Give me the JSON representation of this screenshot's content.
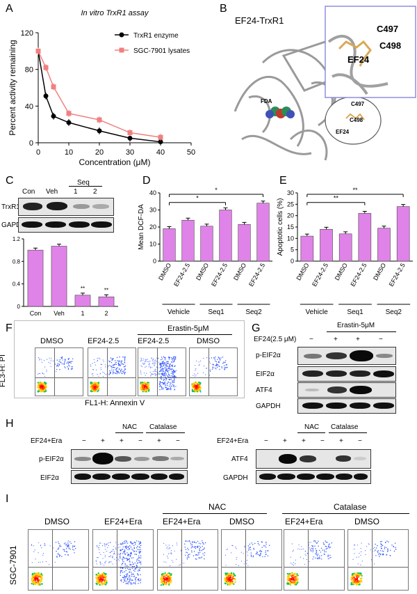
{
  "panels": {
    "A": "A",
    "B": "B",
    "C": "C",
    "D": "D",
    "E": "E",
    "F": "F",
    "G": "G",
    "H": "H",
    "I": "I"
  },
  "chart_data": [
    {
      "id": "A",
      "type": "line",
      "title": "In vitro TrxR1 assay",
      "xlabel": "Concentration (μM)",
      "ylabel": "Percent activity remaining",
      "xlim": [
        0,
        50
      ],
      "ylim": [
        0,
        120
      ],
      "xticks": [
        "0",
        "10",
        "20",
        "30",
        "40",
        "50"
      ],
      "yticks": [
        "0",
        "40",
        "80",
        "120"
      ],
      "legend": "top-right",
      "series": [
        {
          "name": "TrxR1 enzyme",
          "color": "#000000",
          "x": [
            0,
            2.5,
            5,
            10,
            20,
            30,
            40
          ],
          "y": [
            100,
            51,
            29,
            22,
            13,
            5,
            1
          ]
        },
        {
          "name": "SGC-7901 lysates",
          "color": "#f08080",
          "x": [
            0,
            2.5,
            5,
            10,
            20,
            30,
            40
          ],
          "y": [
            100,
            82,
            61,
            32,
            25,
            11,
            6
          ]
        }
      ]
    },
    {
      "id": "C",
      "type": "bar",
      "categories": [
        "Con",
        "Veh",
        "1",
        "2"
      ],
      "values": [
        1.0,
        1.07,
        0.2,
        0.17
      ],
      "ylim": [
        0,
        1.2
      ],
      "yticks": [
        "0",
        "0.4",
        "0.8",
        "1.2"
      ],
      "sig": [
        "",
        "",
        "**",
        "**"
      ],
      "color": "#e083e8"
    },
    {
      "id": "D",
      "type": "bar",
      "ylabel": "Mean DCF-DA",
      "categories": [
        "DMSO",
        "EF24-2.5",
        "DMSO",
        "EF24-2.5",
        "DMSO",
        "EF24-2.5"
      ],
      "groups": [
        "Vehicle",
        "Seq1",
        "Seq2"
      ],
      "values": [
        19,
        24,
        20.5,
        30,
        21.5,
        34
      ],
      "ylim": [
        0,
        40
      ],
      "yticks": [
        "0",
        "10",
        "20",
        "30",
        "40"
      ],
      "sig": [
        "*",
        "*"
      ],
      "color": "#e083e8"
    },
    {
      "id": "E",
      "type": "bar",
      "ylabel": "Apoptotic cells (%)",
      "categories": [
        "DMSO",
        "EF24-2.5",
        "DMSO",
        "EF24-2.5",
        "DMSO",
        "EF24-2.5"
      ],
      "groups": [
        "Vehicle",
        "Seq1",
        "Seq2"
      ],
      "values": [
        11,
        14,
        12,
        21,
        14.5,
        24
      ],
      "ylim": [
        0,
        30
      ],
      "yticks": [
        "0",
        "5",
        "10",
        "15",
        "20",
        "25",
        "30"
      ],
      "sig": [
        "**",
        "**"
      ],
      "color": "#e083e8"
    }
  ],
  "panelB": {
    "title": "EF24-TrxR1",
    "ligand": "FDA",
    "residues": [
      "C497",
      "C498"
    ],
    "compound": "EF24",
    "small_residues": [
      "C497",
      "C498"
    ],
    "small_compound": "EF24"
  },
  "panelC": {
    "lanes": [
      "Con",
      "Veh",
      "1",
      "2"
    ],
    "seq": "Seq",
    "rows": [
      "TrxR1",
      "GAPDH"
    ]
  },
  "panelF": {
    "header": "Erastin-5μM",
    "cols": [
      "DMSO",
      "EF24-2.5",
      "EF24-2.5",
      "DMSO"
    ],
    "ylabel": "FL3-H: PI",
    "xlabel": "FL1-H: Annexin V"
  },
  "panelG": {
    "header": "Erastin-5μM",
    "treat": "EF24(2.5 μM)",
    "signs": [
      "−",
      "+",
      "+",
      "−"
    ],
    "rows": [
      "p-EIF2α",
      "EIF2α",
      "ATF4",
      "GAPDH"
    ]
  },
  "panelH": {
    "left": {
      "rowlabel": "EF24+Era",
      "nac": "NAC",
      "catalase": "Catalase",
      "signs_top": [
        "−",
        "+",
        "+",
        "−",
        "+",
        "−"
      ],
      "rows": [
        "p-EIF2α",
        "EIF2α"
      ]
    },
    "right": {
      "rowlabel": "EF24+Era",
      "nac": "NAC",
      "catalase": "Catalase",
      "signs_top": [
        "−",
        "+",
        "+",
        "−",
        "+",
        "−"
      ],
      "rows": [
        "ATF4",
        "GAPDH"
      ]
    }
  },
  "panelI": {
    "nac": "NAC",
    "catalase": "Catalase",
    "cols": [
      "DMSO",
      "EF24+Era",
      "EF24+Era",
      "DMSO",
      "EF24+Era",
      "DMSO"
    ],
    "ylabel": "SGC-7901"
  }
}
